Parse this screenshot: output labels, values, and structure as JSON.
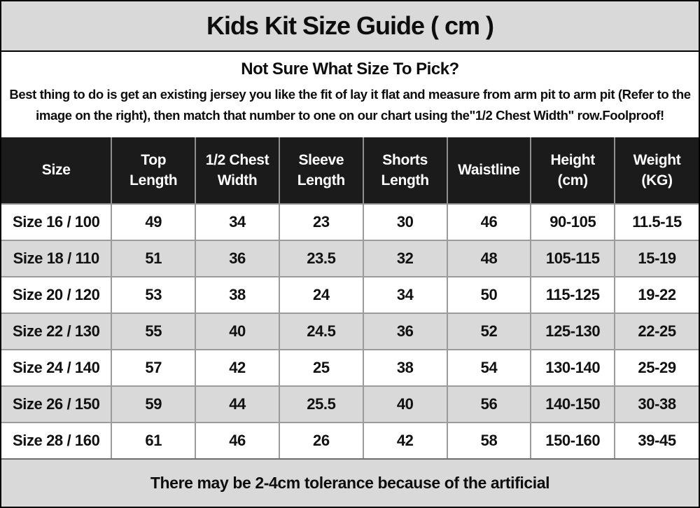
{
  "title": "Kids Kit Size Guide ( cm )",
  "intro": {
    "heading": "Not Sure What Size To Pick?",
    "body": "Best thing to do is get an existing jersey you like the fit of lay it flat and measure from arm pit to arm pit (Refer to the image on the right), then match that number to one on our chart using the\"1/2 Chest Width\" row.Foolproof!"
  },
  "table": {
    "headers": [
      "Size",
      "Top\nLength",
      "1/2 Chest\nWidth",
      "Sleeve\nLength",
      "Shorts\nLength",
      "Waistline",
      "Height\n(cm)",
      "Weight\n(KG)"
    ],
    "header_keys": [
      "size",
      "top-length",
      "half-chest-width",
      "sleeve-length",
      "shorts-length",
      "waistline",
      "height-cm",
      "weight-kg"
    ],
    "rows": [
      [
        "Size 16 / 100",
        "49",
        "34",
        "23",
        "30",
        "46",
        "90-105",
        "11.5-15"
      ],
      [
        "Size 18 / 110",
        "51",
        "36",
        "23.5",
        "32",
        "48",
        "105-115",
        "15-19"
      ],
      [
        "Size 20 / 120",
        "53",
        "38",
        "24",
        "34",
        "50",
        "115-125",
        "19-22"
      ],
      [
        "Size 22 / 130",
        "55",
        "40",
        "24.5",
        "36",
        "52",
        "125-130",
        "22-25"
      ],
      [
        "Size 24 / 140",
        "57",
        "42",
        "25",
        "38",
        "54",
        "130-140",
        "25-29"
      ],
      [
        "Size 26 / 150",
        "59",
        "44",
        "25.5",
        "40",
        "56",
        "140-150",
        "30-38"
      ],
      [
        "Size 28 / 160",
        "61",
        "46",
        "26",
        "42",
        "58",
        "150-160",
        "39-45"
      ]
    ]
  },
  "footer_note": "There may be 2-4cm tolerance because of the artificial",
  "colors": {
    "band_gray": "#d9d9d9",
    "header_black": "#1b1b1b",
    "row_alt_gray": "#d9d9d9",
    "grid_line": "#9b9b9b",
    "outer_border": "#000000",
    "text_dark": "#0d0d0d",
    "header_text": "#ffffff"
  }
}
